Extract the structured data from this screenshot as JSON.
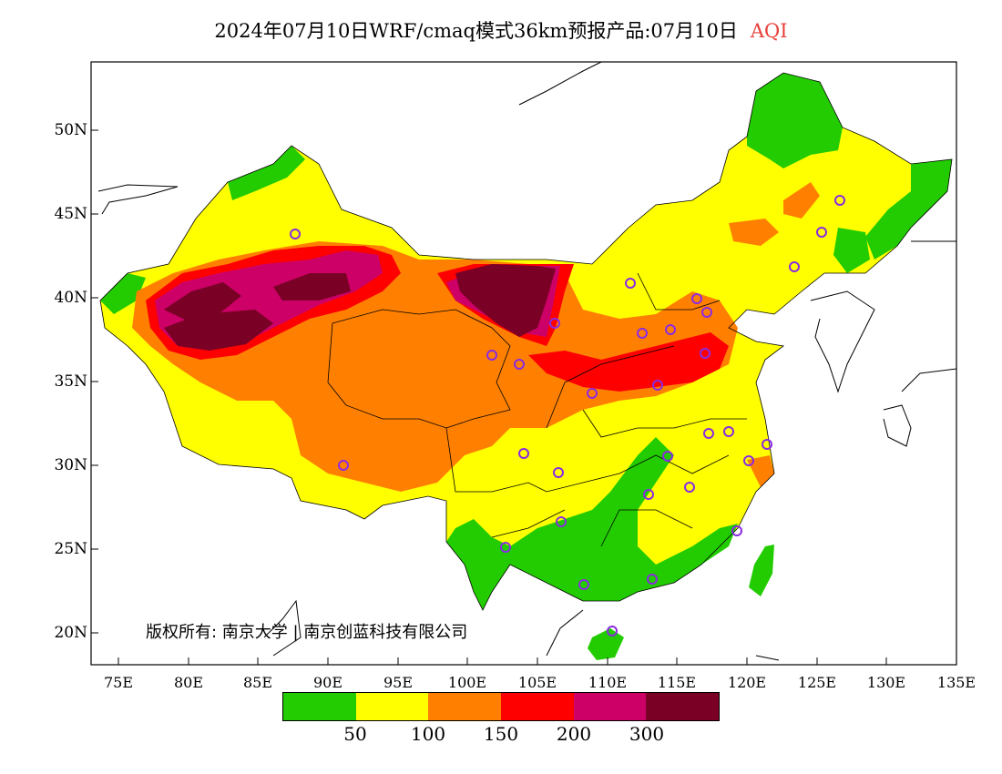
{
  "header": {
    "title": "2024年07月10日WRF/cmaq模式36km预报产品:07月10日",
    "variable": "AQI"
  },
  "axes": {
    "y_ticks": [
      "50N",
      "45N",
      "40N",
      "35N",
      "30N",
      "25N",
      "20N"
    ],
    "x_ticks": [
      "75E",
      "80E",
      "85E",
      "90E",
      "95E",
      "100E",
      "105E",
      "110E",
      "115E",
      "120E",
      "125E",
      "130E",
      "135E"
    ]
  },
  "copyright": "版权所有: 南京大学 | 南京创蓝科技有限公司",
  "legend": {
    "colors": [
      "#22cc00",
      "#ffff00",
      "#ff8000",
      "#ff0000",
      "#cc0066",
      "#7a0026"
    ],
    "labels": [
      "50",
      "100",
      "150",
      "200",
      "300"
    ]
  },
  "colors": {
    "green": "#22cc00",
    "yellow": "#ffff00",
    "orange": "#ff8000",
    "red": "#ff0000",
    "magenta": "#cc0066",
    "maroon": "#7a0026",
    "station": "#8a2be2"
  }
}
